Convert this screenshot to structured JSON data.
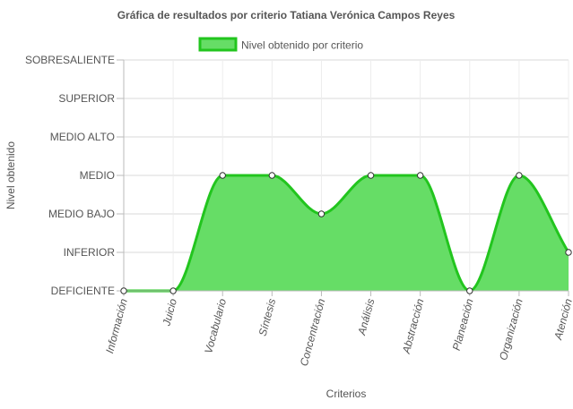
{
  "chart_data": {
    "type": "area",
    "title": "Gráfica de resultados por criterio Tatiana Verónica Campos Reyes",
    "xlabel": "Criterios",
    "ylabel": "Nivel obtenido",
    "categories": [
      "Información",
      "Juicio",
      "Vocabulario",
      "Síntesis",
      "Concentración",
      "Análisis",
      "Abstracción",
      "Planeación",
      "Organización",
      "Atención"
    ],
    "y_levels": [
      "DEFICIENTE",
      "INFERIOR",
      "MEDIO BAJO",
      "MEDIO",
      "MEDIO ALTO",
      "SUPERIOR",
      "SOBRESALIENTE"
    ],
    "ylim": [
      0,
      6
    ],
    "series": [
      {
        "name": "Nivel obtenido por criterio",
        "values": [
          0,
          0,
          3,
          3,
          2,
          3,
          3,
          0,
          3,
          1
        ],
        "color": "#22c51e",
        "fill": "#66dd66"
      }
    ],
    "grid": true,
    "legend_position": "top"
  }
}
